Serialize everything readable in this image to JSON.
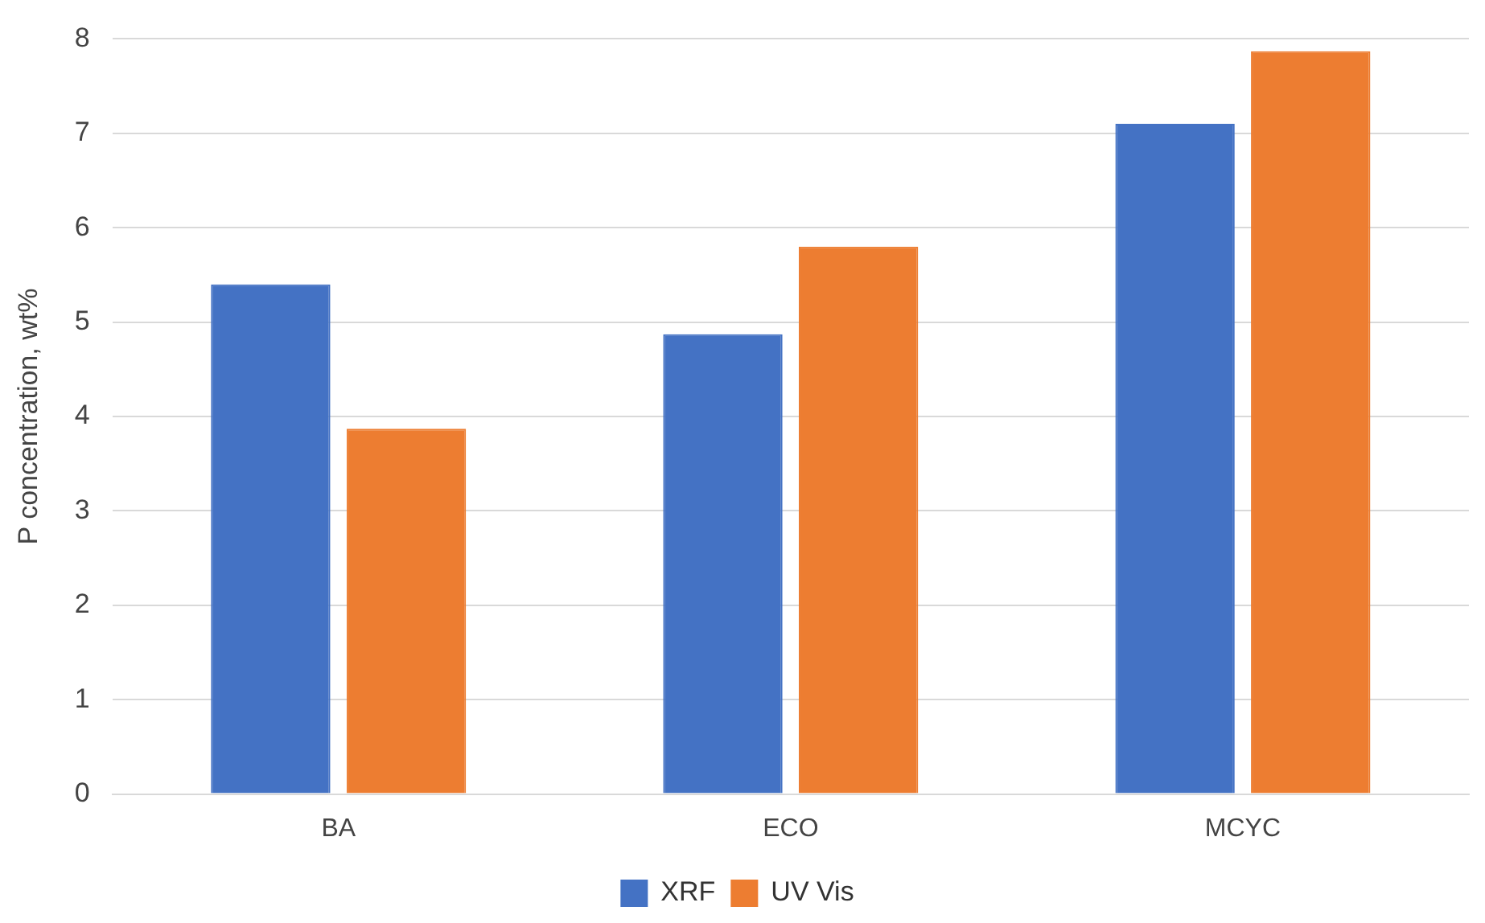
{
  "chart_data": {
    "type": "bar",
    "ylabel": "P concentration, wt%",
    "categories": [
      "BA",
      "ECO",
      "MCYC"
    ],
    "series": [
      {
        "name": "XRF",
        "color": "#4472c4",
        "values": [
          5.4,
          4.87,
          7.1
        ]
      },
      {
        "name": "UV Vis",
        "color": "#ed7d31",
        "values": [
          3.87,
          5.8,
          7.87
        ]
      }
    ],
    "ylim": [
      0,
      8
    ],
    "yticks": [
      0,
      1,
      2,
      3,
      4,
      5,
      6,
      7,
      8
    ],
    "grid": "y",
    "legend": "bottom"
  }
}
